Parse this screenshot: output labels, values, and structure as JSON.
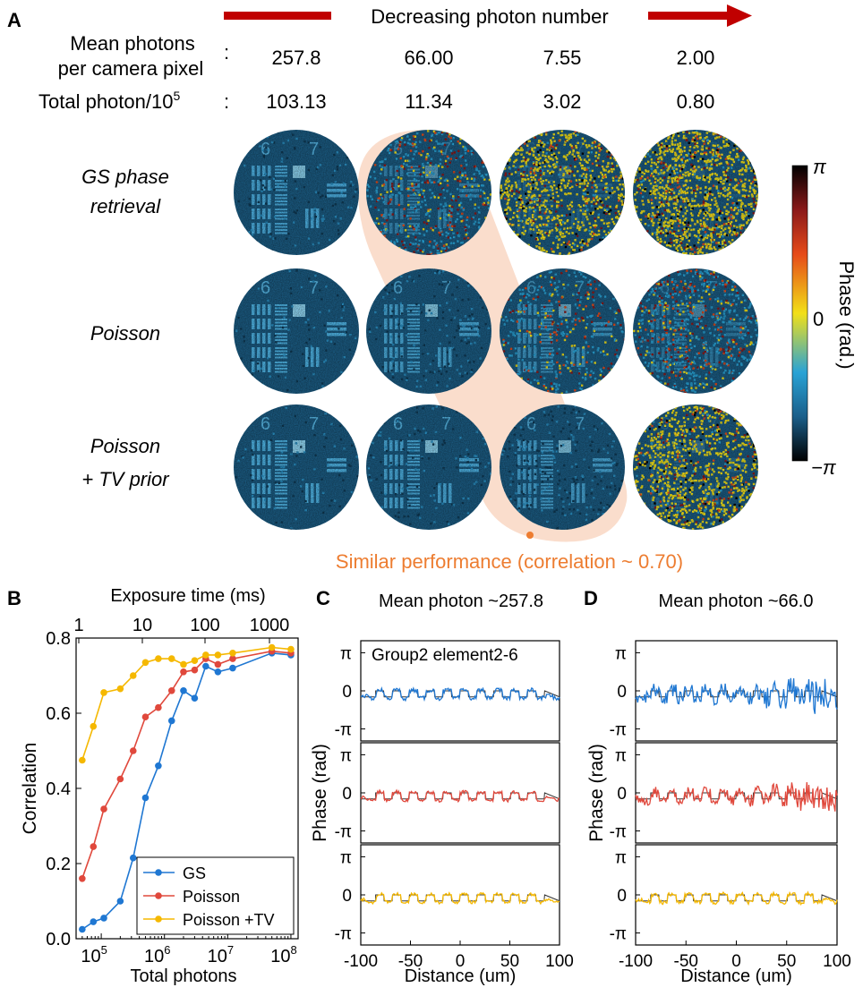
{
  "panel_a": {
    "label": "A",
    "arrow_text": "Decreasing photon number",
    "mean_label_line1": "Mean photons",
    "mean_label_line2": "per camera pixel",
    "colon1": ":",
    "total_label": "Total photon/10",
    "total_label_sup": "5",
    "colon2": ":",
    "mean_values": [
      "257.8",
      "66.00",
      "7.55",
      "2.00"
    ],
    "total_values": [
      "103.13",
      "11.34",
      "3.02",
      "0.80"
    ],
    "row_labels": [
      {
        "line1": "GS phase",
        "line2": "retrieval"
      },
      {
        "line1": "Poisson",
        "line2": ""
      },
      {
        "line1": "Poisson",
        "line2": "+ TV prior"
      }
    ],
    "noise_levels": [
      [
        0.05,
        0.45,
        0.75,
        1.0
      ],
      [
        0.02,
        0.1,
        0.3,
        0.55
      ],
      [
        0.02,
        0.06,
        0.15,
        0.75
      ]
    ],
    "colorbar_top": "π",
    "colorbar_mid": "0",
    "colorbar_bottom": "−π",
    "colorbar_title": "Phase (rad.)",
    "note": "Similar performance (correlation ~ 0.70)",
    "colors": {
      "arrow": "#c00000",
      "highlight": "#f9d7c3",
      "note": "#ed7d31"
    }
  },
  "chart_data": [
    {
      "type": "line",
      "panel": "B",
      "xlabel": "Total photons",
      "top_xlabel": "Exposure time (ms)",
      "ylabel": "Correlation",
      "xscale": "log",
      "xlim": [
        40000,
        130000000
      ],
      "ylim": [
        0.0,
        0.8
      ],
      "x_tick_labels": [
        "10",
        "10",
        "10",
        "10"
      ],
      "x_tick_sups": [
        "5",
        "6",
        "7",
        "8"
      ],
      "y_tick_labels": [
        "0.0",
        "0.2",
        "0.4",
        "0.6",
        "0.8"
      ],
      "top_tick_labels": [
        "1",
        "10",
        "100",
        "1000"
      ],
      "legend_position": "bottom-right",
      "x": [
        50000,
        75000,
        110000,
        200000,
        320000,
        500000,
        800000,
        1300000,
        2000000,
        3000000,
        4500000,
        7000000,
        12000000,
        50000000,
        100000000
      ],
      "series": [
        {
          "name": "GS",
          "color": "#1f77d2",
          "values": [
            0.025,
            0.045,
            0.055,
            0.1,
            0.215,
            0.375,
            0.46,
            0.58,
            0.66,
            0.64,
            0.725,
            0.71,
            0.72,
            0.76,
            0.755
          ]
        },
        {
          "name": "Poisson",
          "color": "#e0483c",
          "values": [
            0.16,
            0.245,
            0.345,
            0.425,
            0.5,
            0.59,
            0.615,
            0.66,
            0.71,
            0.715,
            0.745,
            0.73,
            0.745,
            0.765,
            0.76
          ]
        },
        {
          "name": "Poisson +TV",
          "color": "#f5b800",
          "values": [
            0.475,
            0.565,
            0.655,
            0.665,
            0.7,
            0.735,
            0.745,
            0.745,
            0.73,
            0.74,
            0.755,
            0.755,
            0.76,
            0.775,
            0.77
          ]
        }
      ]
    },
    {
      "type": "line",
      "panel": "C",
      "title": "Mean photon ~257.8",
      "annotation": "Group2  element2-6",
      "xlabel": "Distance (um)",
      "ylabel": "Phase (rad)",
      "xlim": [
        -100,
        100
      ],
      "x_tick_labels": [
        "-100",
        "-50",
        "0",
        "50",
        "100"
      ],
      "y_tick_labels": [
        "π",
        "0",
        "-π"
      ],
      "subplot_colors": [
        "#1f77d2",
        "#e0483c",
        "#f5b800"
      ],
      "reference_color": "#333333",
      "noise_amplitudes": [
        0.35,
        0.3,
        0.25
      ]
    },
    {
      "type": "line",
      "panel": "D",
      "title": "Mean photon ~66.0",
      "xlabel": "Distance (um)",
      "ylabel": "Phase (rad)",
      "xlim": [
        -100,
        100
      ],
      "x_tick_labels": [
        "-100",
        "-50",
        "0",
        "50",
        "100"
      ],
      "y_tick_labels": [
        "π",
        "0",
        "-π"
      ],
      "subplot_colors": [
        "#1f77d2",
        "#e0483c",
        "#f5b800"
      ],
      "reference_color": "#333333",
      "noise_amplitudes": [
        1.2,
        0.9,
        0.35
      ]
    }
  ],
  "panel_labels": {
    "b": "B",
    "c": "C",
    "d": "D"
  }
}
